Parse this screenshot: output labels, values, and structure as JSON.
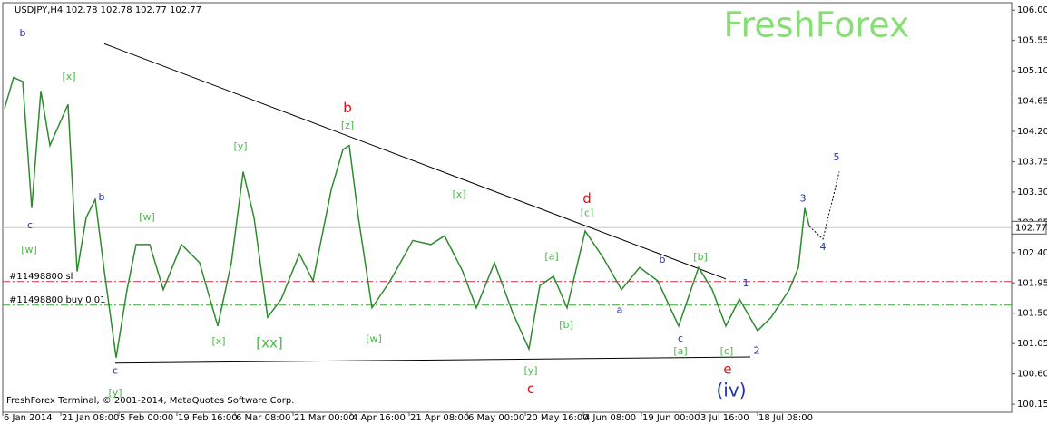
{
  "chart_data": {
    "type": "line",
    "title": "USDJPY,H4  102.78 102.78 102.77 102.77",
    "watermark": "FreshForex",
    "footer": "FreshForex Terminal, © 2001-2014, MetaQuotes Software Corp.",
    "xlim": [
      0,
      1112
    ],
    "ylim": [
      100.03,
      106.11
    ],
    "xticks": [
      {
        "value": 0,
        "label": "6 Jan 2014"
      },
      {
        "value": 64,
        "label": "21 Jan 08:00"
      },
      {
        "value": 128,
        "label": "5 Feb 00:00"
      },
      {
        "value": 192,
        "label": "19 Feb 16:00"
      },
      {
        "value": 256,
        "label": "6 Mar 08:00"
      },
      {
        "value": 320,
        "label": "21 Mar 00:00"
      },
      {
        "value": 384,
        "label": "4 Apr 16:00"
      },
      {
        "value": 448,
        "label": "21 Apr 08:00"
      },
      {
        "value": 512,
        "label": "6 May 00:00"
      },
      {
        "value": 576,
        "label": "20 May 16:00"
      },
      {
        "value": 640,
        "label": "4 Jun 08:00"
      },
      {
        "value": 704,
        "label": "19 Jun 00:00"
      },
      {
        "value": 768,
        "label": "3 Jul 16:00"
      },
      {
        "value": 832,
        "label": "18 Jul 08:00"
      }
    ],
    "yticks": [
      {
        "value": 106,
        "label": "106.00"
      },
      {
        "value": 105.55,
        "label": "105.55"
      },
      {
        "value": 105.1,
        "label": "105.10"
      },
      {
        "value": 104.65,
        "label": "104.65"
      },
      {
        "value": 104.2,
        "label": "104.20"
      },
      {
        "value": 103.75,
        "label": "103.75"
      },
      {
        "value": 103.3,
        "label": "103.30"
      },
      {
        "value": 102.85,
        "label": "102.85"
      },
      {
        "value": 102.4,
        "label": "102.40"
      },
      {
        "value": 101.95,
        "label": "101.95"
      },
      {
        "value": 101.5,
        "label": "101.50"
      },
      {
        "value": 101.05,
        "label": "101.05"
      },
      {
        "value": 100.6,
        "label": "100.60"
      },
      {
        "value": 100.15,
        "label": "100.15"
      }
    ],
    "series": [
      {
        "name": "USDJPY",
        "color": "#2e8b2e",
        "x": [
          2,
          12,
          22,
          32,
          42,
          52,
          72,
          82,
          92,
          102,
          112,
          125,
          137,
          147,
          162,
          177,
          197,
          217,
          237,
          252,
          265,
          277,
          292,
          307,
          327,
          342,
          362,
          375,
          382,
          392,
          407,
          427,
          452,
          472,
          487,
          507,
          522,
          542,
          562,
          580,
          592,
          607,
          622,
          642,
          662,
          682,
          702,
          722,
          745,
          767,
          782,
          797,
          812,
          832,
          847,
          867,
          877,
          884,
          889
        ],
        "values": [
          104.54,
          105.0,
          104.94,
          103.06,
          104.8,
          103.99,
          104.6,
          102.12,
          102.92,
          103.19,
          102.12,
          100.84,
          101.85,
          102.52,
          102.52,
          101.85,
          102.52,
          102.25,
          101.31,
          102.25,
          103.6,
          102.92,
          101.44,
          101.71,
          102.38,
          101.98,
          103.33,
          103.93,
          103.99,
          102.92,
          101.58,
          101.98,
          102.58,
          102.52,
          102.65,
          102.12,
          101.58,
          102.25,
          101.51,
          100.97,
          101.91,
          102.05,
          101.58,
          102.72,
          102.32,
          101.85,
          102.18,
          101.98,
          101.31,
          102.18,
          101.85,
          101.31,
          101.71,
          101.24,
          101.44,
          101.85,
          102.18,
          103.06,
          102.79
        ]
      },
      {
        "name": "projection",
        "color": "#000000",
        "x": [
          889,
          904,
          922
        ],
        "values": [
          102.79,
          102.6,
          103.6
        ]
      }
    ],
    "trendlines": [
      {
        "x": [
          112,
          797
        ],
        "values": [
          105.5,
          102.01
        ],
        "color": "#000000"
      },
      {
        "x": [
          124,
          824
        ],
        "values": [
          100.76,
          100.85
        ],
        "color": "#000000"
      }
    ],
    "levels": [
      {
        "label": "#11498800 sl",
        "value": 101.97,
        "color": "#cc3344"
      },
      {
        "label": "#11498800 buy 0.01",
        "value": 101.62,
        "color": "#33aa33"
      }
    ],
    "current_price": 102.77,
    "annotations": [
      {
        "text": "b",
        "x": 22,
        "y": 105.65,
        "color": "#2233aa"
      },
      {
        "text": "[x]",
        "x": 73,
        "y": 105.01,
        "color": "#44bb44"
      },
      {
        "text": "c",
        "x": 30,
        "y": 102.8,
        "color": "#2233aa"
      },
      {
        "text": "[w]",
        "x": 29,
        "y": 102.44,
        "color": "#44bb44"
      },
      {
        "text": "b",
        "x": 109,
        "y": 103.22,
        "color": "#2233aa"
      },
      {
        "text": "[w]",
        "x": 159,
        "y": 102.92,
        "color": "#44bb44"
      },
      {
        "text": "[y]",
        "x": 262,
        "y": 103.97,
        "color": "#44bb44"
      },
      {
        "text": "b",
        "x": 380,
        "y": 104.54,
        "color": "#dd1111"
      },
      {
        "text": "[z]",
        "x": 380,
        "y": 104.28,
        "color": "#44bb44"
      },
      {
        "text": "[x]",
        "x": 503,
        "y": 103.26,
        "color": "#44bb44"
      },
      {
        "text": "d",
        "x": 644,
        "y": 103.2,
        "color": "#dd1111"
      },
      {
        "text": "[c]",
        "x": 644,
        "y": 102.98,
        "color": "#44bb44"
      },
      {
        "text": "[a]",
        "x": 605,
        "y": 102.34,
        "color": "#44bb44"
      },
      {
        "text": "b",
        "x": 727,
        "y": 102.29,
        "color": "#2233aa"
      },
      {
        "text": "[b]",
        "x": 769,
        "y": 102.33,
        "color": "#44bb44"
      },
      {
        "text": "a",
        "x": 680,
        "y": 101.54,
        "color": "#2233aa"
      },
      {
        "text": "[b]",
        "x": 621,
        "y": 101.32,
        "color": "#44bb44"
      },
      {
        "text": "c",
        "x": 747,
        "y": 101.12,
        "color": "#2233aa"
      },
      {
        "text": "[a]",
        "x": 747,
        "y": 100.93,
        "color": "#44bb44"
      },
      {
        "text": "[c]",
        "x": 798,
        "y": 100.93,
        "color": "#44bb44"
      },
      {
        "text": "e",
        "x": 799,
        "y": 100.66,
        "color": "#dd1111"
      },
      {
        "text": "(iv)",
        "x": 803,
        "y": 100.34,
        "color": "#2233aa"
      },
      {
        "text": "2",
        "x": 831,
        "y": 100.94,
        "color": "#2233aa"
      },
      {
        "text": "1",
        "x": 819,
        "y": 101.94,
        "color": "#2233aa"
      },
      {
        "text": "3",
        "x": 882,
        "y": 103.2,
        "color": "#2233aa"
      },
      {
        "text": "4",
        "x": 904,
        "y": 102.48,
        "color": "#2233aa"
      },
      {
        "text": "5",
        "x": 919,
        "y": 103.81,
        "color": "#2233aa"
      },
      {
        "text": "c",
        "x": 124,
        "y": 100.64,
        "color": "#2233aa"
      },
      {
        "text": "[y]",
        "x": 124,
        "y": 100.31,
        "color": "#44bb44"
      },
      {
        "text": "[x]",
        "x": 238,
        "y": 101.08,
        "color": "#44bb44"
      },
      {
        "text": "[xx]",
        "x": 294,
        "y": 101.05,
        "color": "#44bb44"
      },
      {
        "text": "[w]",
        "x": 409,
        "y": 101.11,
        "color": "#44bb44"
      },
      {
        "text": "[y]",
        "x": 582,
        "y": 100.64,
        "color": "#44bb44"
      },
      {
        "text": "c",
        "x": 582,
        "y": 100.37,
        "color": "#dd1111"
      }
    ]
  }
}
